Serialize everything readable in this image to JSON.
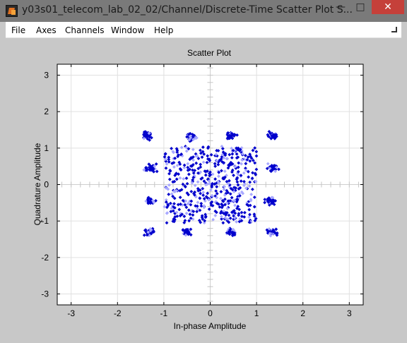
{
  "window": {
    "title": "y03s01_telecom_lab_02_02/Channel/Discrete-Time Scatter Plot S...",
    "minimize": "—",
    "maximize": "□",
    "close": "✕"
  },
  "menu": [
    "File",
    "Axes",
    "Channels",
    "Window",
    "Help"
  ],
  "colors": {
    "points_dark": "#0000cc",
    "points_light": "#a9a9ff",
    "grid": "#e0e0e0",
    "axes_bg": "#ffffff",
    "figure_bg": "#c8c8c8"
  },
  "chart_data": {
    "type": "scatter",
    "title": "Scatter Plot",
    "xlabel": "In-phase Amplitude",
    "ylabel": "Quadrature Amplitude",
    "xlim": [
      -3.3,
      3.3
    ],
    "ylim": [
      -3.3,
      3.3
    ],
    "xticks": [
      -3,
      -2,
      -1,
      0,
      1,
      2,
      3
    ],
    "yticks": [
      -3,
      -2,
      -1,
      0,
      1,
      2,
      3
    ],
    "xtick_labels": [
      "-3",
      "-2",
      "-1",
      "0",
      "1",
      "2",
      "3"
    ],
    "ytick_labels": [
      "-3",
      "-2",
      "-1",
      "0",
      "1",
      "2",
      "3"
    ],
    "grid": true,
    "clusters": [
      {
        "x": -1.35,
        "y": 1.35
      },
      {
        "x": -0.4,
        "y": 1.3
      },
      {
        "x": 0.45,
        "y": 1.35
      },
      {
        "x": 1.35,
        "y": 1.35
      },
      {
        "x": -1.3,
        "y": 0.45
      },
      {
        "x": 1.35,
        "y": 0.45
      },
      {
        "x": -1.3,
        "y": -0.45
      },
      {
        "x": 1.3,
        "y": -0.45
      },
      {
        "x": -1.3,
        "y": -1.3
      },
      {
        "x": -0.5,
        "y": -1.3
      },
      {
        "x": 0.45,
        "y": -1.3
      },
      {
        "x": 1.35,
        "y": -1.3
      }
    ],
    "center_region": {
      "xmin": -1.0,
      "xmax": 1.0,
      "ymin": -1.05,
      "ymax": 1.05
    }
  }
}
